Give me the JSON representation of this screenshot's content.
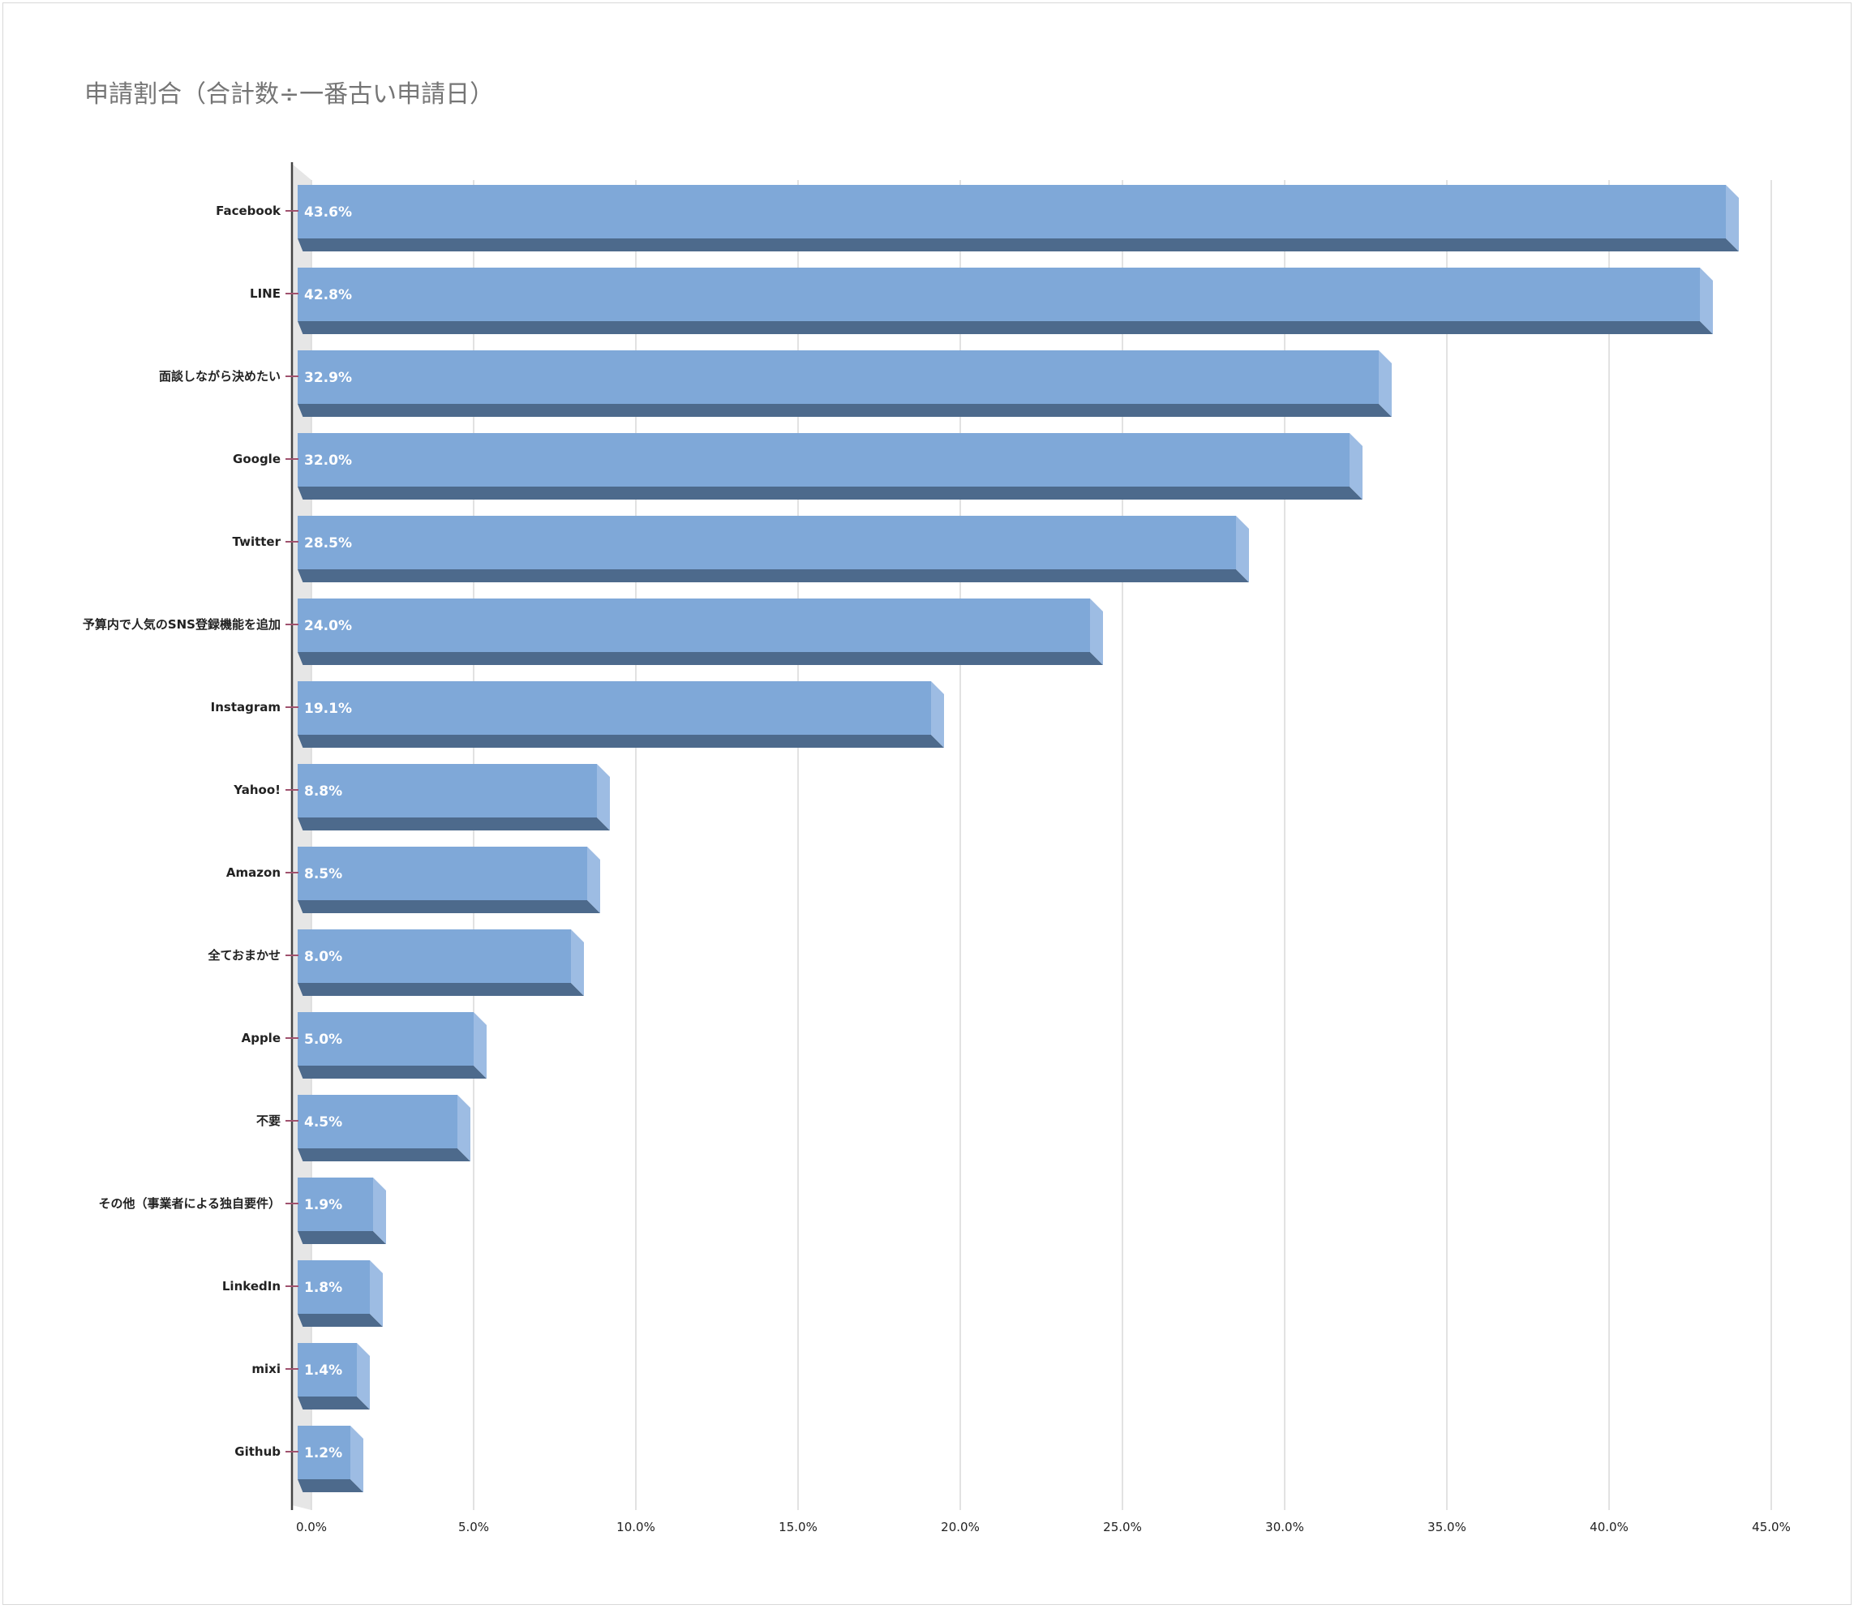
{
  "colors": {
    "bar_front": "#7fa8d8",
    "bar_bottom": "#4d6a8c",
    "bar_side": "#9dbce3",
    "gridline": "#d9d9d9",
    "axis": "#444444",
    "tick_mark": "#a0526e",
    "wall": "#e6e6e6",
    "title": "#757575",
    "data_label": "#ffffff"
  },
  "chart_data": {
    "type": "bar",
    "orientation": "horizontal",
    "style": "3d",
    "title": "申請割合（合計数÷一番古い申請日）",
    "xlabel": "",
    "ylabel": "",
    "xlim": [
      0,
      45
    ],
    "x_ticks": [
      "0.0%",
      "5.0%",
      "10.0%",
      "15.0%",
      "20.0%",
      "25.0%",
      "30.0%",
      "35.0%",
      "40.0%",
      "45.0%"
    ],
    "grid": true,
    "legend": "none",
    "categories": [
      "Facebook",
      "LINE",
      "面談しながら決めたい",
      "Google",
      "Twitter",
      "予算内で人気のSNS登録機能を追加",
      "Instagram",
      "Yahoo!",
      "Amazon",
      "全ておまかせ",
      "Apple",
      "不要",
      "その他（事業者による独自要件）",
      "LinkedIn",
      "mixi",
      "Github"
    ],
    "values": [
      43.6,
      42.8,
      32.9,
      32.0,
      28.5,
      24.0,
      19.1,
      8.8,
      8.5,
      8.0,
      5.0,
      4.5,
      1.9,
      1.8,
      1.4,
      1.2
    ],
    "data_labels": [
      "43.6%",
      "42.8%",
      "32.9%",
      "32.0%",
      "28.5%",
      "24.0%",
      "19.1%",
      "8.8%",
      "8.5%",
      "8.0%",
      "5.0%",
      "4.5%",
      "1.9%",
      "1.8%",
      "1.4%",
      "1.2%"
    ]
  }
}
